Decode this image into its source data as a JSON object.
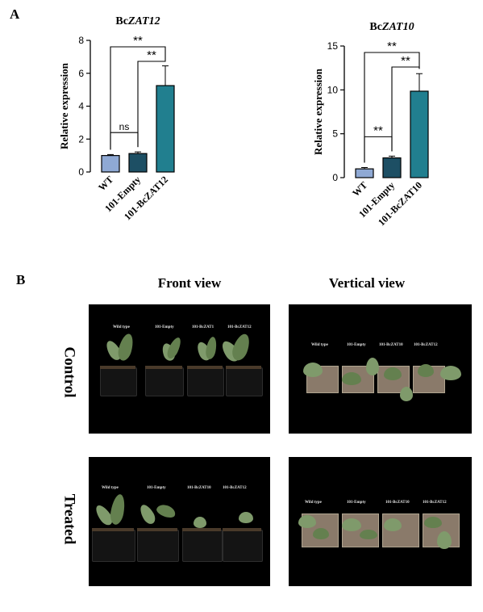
{
  "panels": {
    "a_label": "A",
    "b_label": "B"
  },
  "charts": [
    {
      "type": "bar",
      "title_prefix": "Bc",
      "title_italic": "ZAT12",
      "ylabel": "Relative expression",
      "ylim": [
        0,
        8
      ],
      "yticks": [
        "0",
        "2",
        "4",
        "6",
        "8"
      ],
      "categories": [
        "WT",
        "101-Empty",
        "101-BcZAT12"
      ],
      "values": [
        1.0,
        1.12,
        5.25
      ],
      "errors": [
        0.06,
        0.1,
        1.2
      ],
      "colors": [
        "#8fa9d4",
        "#1d4f64",
        "#217f8f"
      ],
      "significance": [
        {
          "from": 0,
          "to": 2,
          "label": "**"
        },
        {
          "from": 1,
          "to": 2,
          "label": "**"
        },
        {
          "from": 0,
          "to": 1,
          "label": "ns"
        }
      ]
    },
    {
      "type": "bar",
      "title_prefix": "Bc",
      "title_italic": "ZAT10",
      "ylabel": "Relative expression",
      "ylim": [
        0,
        15
      ],
      "yticks": [
        "0",
        "5",
        "10",
        "15"
      ],
      "categories": [
        "WT",
        "101-Empty",
        "101-BcZAT10"
      ],
      "values": [
        1.0,
        2.25,
        9.85
      ],
      "errors": [
        0.15,
        0.2,
        2.0
      ],
      "colors": [
        "#8fa9d4",
        "#1d4f64",
        "#217f8f"
      ],
      "significance": [
        {
          "from": 0,
          "to": 2,
          "label": "**"
        },
        {
          "from": 1,
          "to": 2,
          "label": "**"
        },
        {
          "from": 0,
          "to": 1,
          "label": "**"
        }
      ]
    }
  ],
  "views": {
    "front": "Front view",
    "vertical": "Vertical view"
  },
  "rows": {
    "control": "Control",
    "treated": "Treated"
  },
  "photos": {
    "front_control": [
      "Wild type",
      "101-Empty",
      "101-BcZAT1",
      "101-BcZAT12"
    ],
    "vertical_control": [
      "Wild type",
      "101-Empty",
      "101-BcZAT10",
      "101-BcZAT12"
    ],
    "front_treated": [
      "Wild type",
      "101-Empty",
      "101-BcZAT10",
      "101-BcZAT12"
    ],
    "vertical_treated": [
      "Wild type",
      "101-Empty",
      "101-BcZAT10",
      "101-BcZAT12"
    ]
  }
}
